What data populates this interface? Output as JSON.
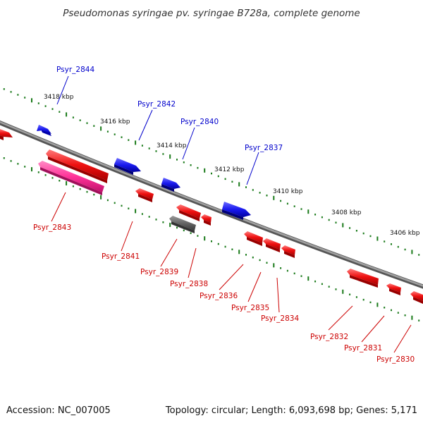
{
  "title": "Pseudomonas syringae pv. syringae B728a, complete genome",
  "footer": {
    "accession": "Accession: NC_007005",
    "summary": "Topology: circular; Length: 6,093,698 bp; Genes: 5,171"
  },
  "kbp_labels": [
    "3418 kbp",
    "3416 kbp",
    "3414 kbp",
    "3412 kbp",
    "3410 kbp",
    "3408 kbp",
    "3406 kbp"
  ],
  "genes_top": [
    {
      "name": "Psyr_2844",
      "color": "#0000cc"
    },
    {
      "name": "Psyr_2842",
      "color": "#0000cc"
    },
    {
      "name": "Psyr_2840",
      "color": "#0000cc"
    },
    {
      "name": "Psyr_2837",
      "color": "#0000cc"
    }
  ],
  "genes_bottom": [
    {
      "name": "Psyr_2843",
      "color": "#cc0000"
    },
    {
      "name": "Psyr_2841",
      "color": "#cc0000"
    },
    {
      "name": "Psyr_2839",
      "color": "#cc0000"
    },
    {
      "name": "Psyr_2838",
      "color": "#cc0000"
    },
    {
      "name": "Psyr_2836",
      "color": "#cc0000"
    },
    {
      "name": "Psyr_2835",
      "color": "#cc0000"
    },
    {
      "name": "Psyr_2834",
      "color": "#cc0000"
    },
    {
      "name": "Psyr_2832",
      "color": "#cc0000"
    },
    {
      "name": "Psyr_2831",
      "color": "#cc0000"
    },
    {
      "name": "Psyr_2830",
      "color": "#cc0000"
    }
  ],
  "colors": {
    "backbone": "#808080",
    "tick": "#1a7a1a",
    "forward_gene": "#1a1aee",
    "reverse_gene": "#ee1111",
    "rna_gene": "#ff3399",
    "pseudo_gene": "#666666"
  }
}
